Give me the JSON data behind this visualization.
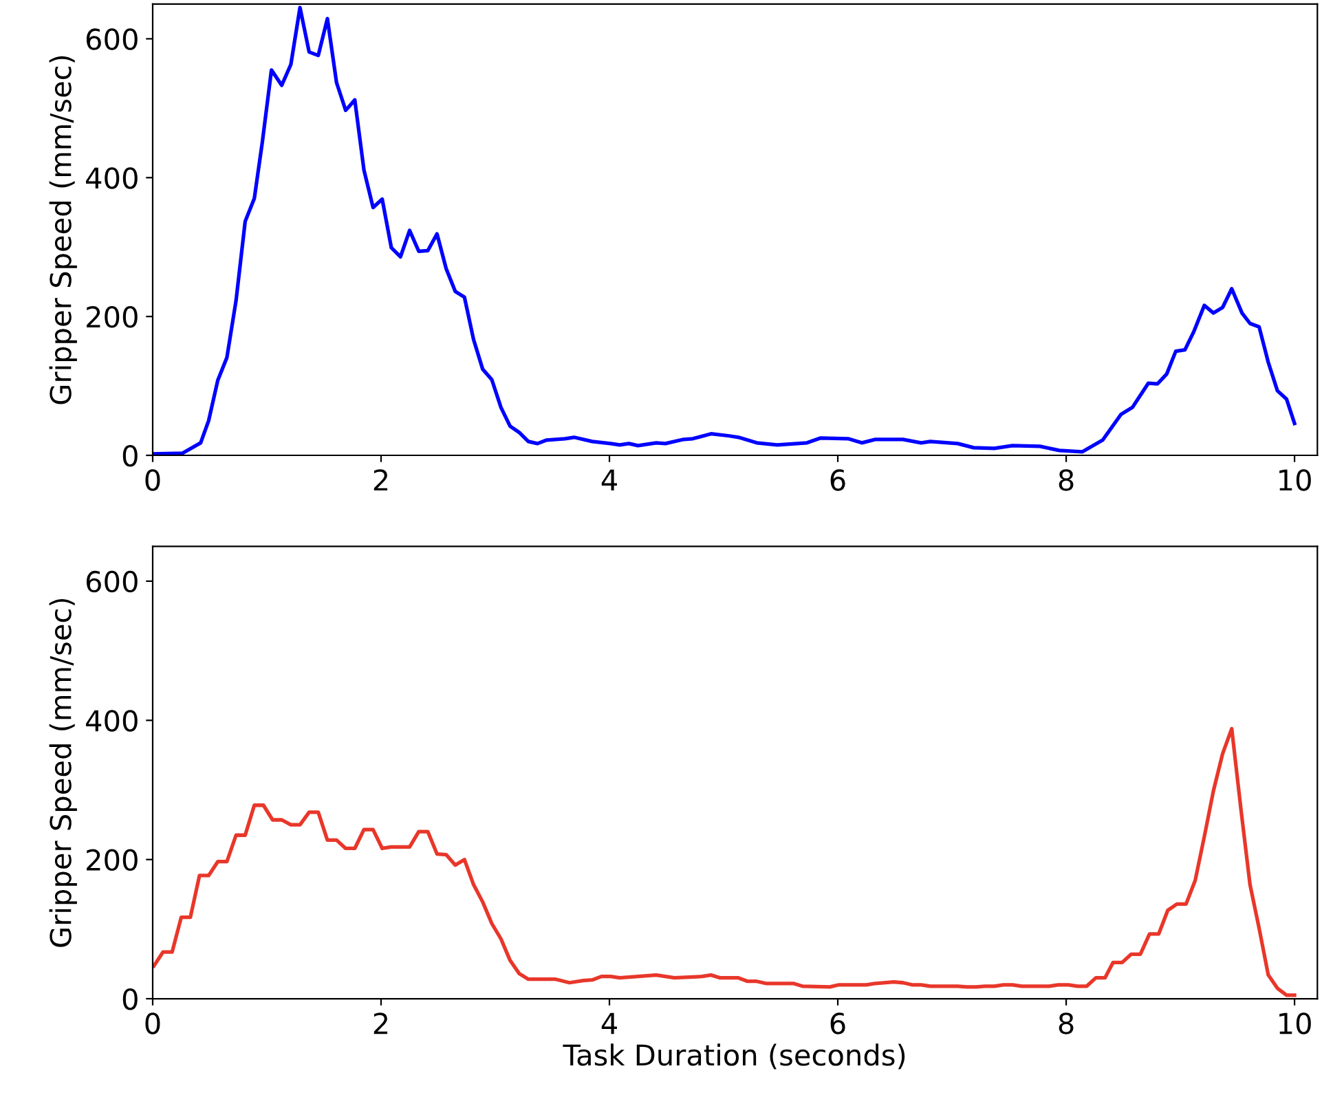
{
  "chart_data": [
    {
      "type": "line",
      "ylabel": "Gripper Speed (mm/sec)",
      "xlim": [
        0,
        10.2
      ],
      "ylim": [
        0,
        650
      ],
      "xticks": [
        0,
        2,
        4,
        6,
        8,
        10
      ],
      "yticks": [
        0,
        200,
        400,
        600
      ],
      "series": [
        {
          "color": "#0000ff",
          "x": [
            0,
            0.26,
            0.42,
            0.49,
            0.57,
            0.65,
            0.73,
            0.81,
            0.89,
            0.96,
            1.04,
            1.13,
            1.21,
            1.29,
            1.37,
            1.45,
            1.53,
            1.61,
            1.69,
            1.77,
            1.85,
            1.93,
            2.01,
            2.09,
            2.17,
            2.25,
            2.33,
            2.41,
            2.49,
            2.57,
            2.65,
            2.73,
            2.81,
            2.89,
            2.97,
            3.05,
            3.13,
            3.21,
            3.29,
            3.37,
            3.45,
            3.61,
            3.69,
            3.85,
            4.01,
            4.09,
            4.17,
            4.25,
            4.41,
            4.49,
            4.65,
            4.73,
            4.89,
            5.05,
            5.13,
            5.29,
            5.47,
            5.73,
            5.85,
            6.09,
            6.21,
            6.33,
            6.57,
            6.73,
            6.81,
            7.05,
            7.19,
            7.37,
            7.53,
            7.77,
            7.94,
            8.14,
            8.32,
            8.48,
            8.58,
            8.72,
            8.8,
            8.88,
            8.96,
            9.04,
            9.12,
            9.21,
            9.29,
            9.37,
            9.45,
            9.54,
            9.61,
            9.69,
            9.77,
            9.85,
            9.93,
            10.0
          ],
          "values": [
            2,
            3,
            18,
            50,
            108,
            141,
            223,
            337,
            370,
            451,
            555,
            533,
            563,
            645,
            581,
            576,
            629,
            537,
            497,
            512,
            411,
            357,
            369,
            299,
            286,
            324,
            294,
            295,
            319,
            269,
            236,
            228,
            167,
            124,
            109,
            69,
            42,
            33,
            20,
            17,
            22,
            24,
            26,
            20,
            17,
            15,
            17,
            14,
            18,
            17,
            23,
            24,
            31,
            28,
            26,
            18,
            15,
            18,
            25,
            24,
            18,
            23,
            23,
            18,
            20,
            17,
            11,
            10,
            14,
            13,
            7,
            5,
            22,
            59,
            69,
            104,
            103,
            117,
            150,
            152,
            179,
            216,
            205,
            213,
            240,
            205,
            190,
            185,
            134,
            93,
            81,
            46
          ]
        }
      ]
    },
    {
      "type": "line",
      "xlabel": "Task Duration (seconds)",
      "ylabel": "Gripper Speed (mm/sec)",
      "xlim": [
        0,
        10.2
      ],
      "ylim": [
        0,
        650
      ],
      "xticks": [
        0,
        2,
        4,
        6,
        8,
        10
      ],
      "yticks": [
        0,
        200,
        400,
        600
      ],
      "series": [
        {
          "color": "#e8372a",
          "x": [
            0.01,
            0.09,
            0.17,
            0.25,
            0.33,
            0.41,
            0.49,
            0.57,
            0.65,
            0.73,
            0.81,
            0.89,
            0.97,
            1.05,
            1.13,
            1.21,
            1.29,
            1.37,
            1.45,
            1.53,
            1.61,
            1.69,
            1.77,
            1.85,
            1.93,
            2.01,
            2.09,
            2.17,
            2.25,
            2.33,
            2.41,
            2.49,
            2.57,
            2.65,
            2.73,
            2.81,
            2.89,
            2.97,
            3.05,
            3.13,
            3.21,
            3.29,
            3.53,
            3.65,
            3.77,
            3.85,
            3.93,
            4.01,
            4.09,
            4.25,
            4.41,
            4.57,
            4.81,
            4.89,
            4.97,
            5.13,
            5.21,
            5.29,
            5.37,
            5.61,
            5.69,
            5.93,
            6.01,
            6.25,
            6.33,
            6.49,
            6.57,
            6.65,
            6.73,
            6.81,
            7.05,
            7.13,
            7.21,
            7.29,
            7.37,
            7.45,
            7.53,
            7.61,
            7.85,
            7.93,
            8.02,
            8.1,
            8.18,
            8.26,
            8.34,
            8.41,
            8.49,
            8.57,
            8.65,
            8.73,
            8.81,
            8.89,
            8.97,
            9.05,
            9.13,
            9.21,
            9.29,
            9.37,
            9.45,
            9.53,
            9.61,
            9.69,
            9.77,
            9.85,
            9.93,
            10.0
          ],
          "values": [
            47,
            67,
            67,
            117,
            117,
            177,
            177,
            197,
            197,
            235,
            235,
            278,
            278,
            257,
            257,
            250,
            250,
            268,
            268,
            228,
            228,
            216,
            216,
            243,
            243,
            216,
            218,
            218,
            218,
            240,
            240,
            208,
            207,
            192,
            200,
            164,
            139,
            108,
            86,
            55,
            36,
            28,
            28,
            23,
            26,
            27,
            32,
            32,
            30,
            32,
            34,
            30,
            32,
            34,
            30,
            30,
            25,
            25,
            22,
            22,
            18,
            17,
            20,
            20,
            22,
            24,
            23,
            20,
            20,
            18,
            18,
            17,
            17,
            18,
            18,
            20,
            20,
            18,
            18,
            20,
            20,
            18,
            18,
            30,
            30,
            52,
            52,
            64,
            64,
            93,
            93,
            127,
            136,
            136,
            170,
            233,
            299,
            352,
            388,
            273,
            164,
            101,
            34,
            15,
            5,
            5
          ]
        }
      ]
    }
  ]
}
